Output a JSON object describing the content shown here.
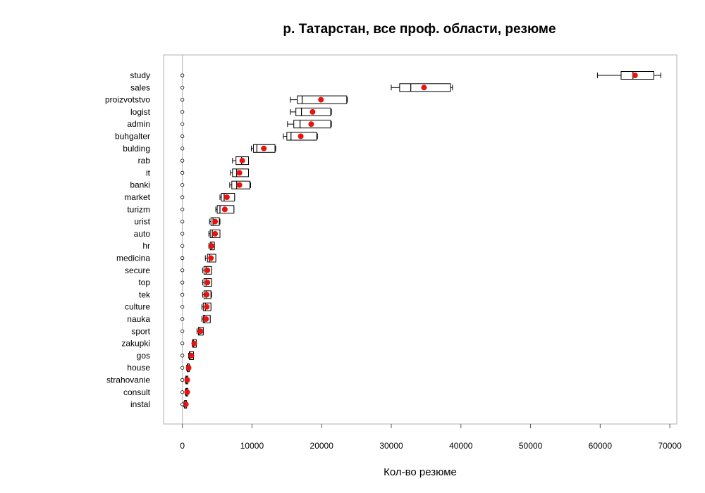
{
  "chart_data": {
    "type": "boxplot",
    "title": "р. Татарстан, все проф. области, резюме",
    "xlabel": "Кол-во резюме",
    "ylabel": "",
    "xlim": [
      -2700,
      71000
    ],
    "xticks": [
      0,
      10000,
      20000,
      30000,
      40000,
      50000,
      60000,
      70000
    ],
    "grid": false,
    "zero_line": 0,
    "colors": {
      "mean_marker": "#e8130f",
      "box": "#000000",
      "frame": "#b0b0b0",
      "zero_line": "#b0b0b0"
    },
    "categories": [
      "study",
      "sales",
      "proizvotstvo",
      "logist",
      "admin",
      "buhgalter",
      "bulding",
      "rab",
      "it",
      "banki",
      "market",
      "turizm",
      "urist",
      "auto",
      "hr",
      "medicina",
      "secure",
      "top",
      "tek",
      "culture",
      "nauka",
      "sport",
      "zakupki",
      "gos",
      "house",
      "strahovanie",
      "consult",
      "instal"
    ],
    "boxes": [
      {
        "min": 59600,
        "q1": 63000,
        "median": 64700,
        "q3": 67700,
        "max": 68700,
        "mean": 65000
      },
      {
        "min": 30000,
        "q1": 31200,
        "median": 32800,
        "q3": 38500,
        "max": 38800,
        "mean": 34700
      },
      {
        "min": 15500,
        "q1": 16500,
        "median": 17200,
        "q3": 23600,
        "max": 23700,
        "mean": 19900
      },
      {
        "min": 15500,
        "q1": 16300,
        "median": 17100,
        "q3": 21300,
        "max": 21400,
        "mean": 18700
      },
      {
        "min": 15100,
        "q1": 16000,
        "median": 16900,
        "q3": 21300,
        "max": 21400,
        "mean": 18500
      },
      {
        "min": 14500,
        "q1": 15000,
        "median": 15600,
        "q3": 19300,
        "max": 19400,
        "mean": 17000
      },
      {
        "min": 9900,
        "q1": 10200,
        "median": 10700,
        "q3": 13300,
        "max": 13400,
        "mean": 11700
      },
      {
        "min": 7200,
        "q1": 7700,
        "median": 8500,
        "q3": 9500,
        "max": 9500,
        "mean": 8600
      },
      {
        "min": 6900,
        "q1": 7200,
        "median": 7800,
        "q3": 9500,
        "max": 9500,
        "mean": 8200
      },
      {
        "min": 6800,
        "q1": 7100,
        "median": 7800,
        "q3": 9700,
        "max": 9800,
        "mean": 8200
      },
      {
        "min": 5400,
        "q1": 5600,
        "median": 6000,
        "q3": 7500,
        "max": 7500,
        "mean": 6400
      },
      {
        "min": 4800,
        "q1": 5000,
        "median": 5400,
        "q3": 7400,
        "max": 7400,
        "mean": 6100
      },
      {
        "min": 3900,
        "q1": 4100,
        "median": 4400,
        "q3": 5300,
        "max": 5400,
        "mean": 4700
      },
      {
        "min": 3800,
        "q1": 4000,
        "median": 4300,
        "q3": 5400,
        "max": 5400,
        "mean": 4700
      },
      {
        "min": 3800,
        "q1": 4000,
        "median": 4200,
        "q3": 4600,
        "max": 4600,
        "mean": 4200
      },
      {
        "min": 3300,
        "q1": 3600,
        "median": 3900,
        "q3": 4800,
        "max": 4800,
        "mean": 4100
      },
      {
        "min": 2900,
        "q1": 3100,
        "median": 3400,
        "q3": 4200,
        "max": 4200,
        "mean": 3600
      },
      {
        "min": 2900,
        "q1": 3100,
        "median": 3400,
        "q3": 4200,
        "max": 4200,
        "mean": 3600
      },
      {
        "min": 2900,
        "q1": 3100,
        "median": 3400,
        "q3": 4100,
        "max": 4200,
        "mean": 3500
      },
      {
        "min": 2800,
        "q1": 3000,
        "median": 3300,
        "q3": 4100,
        "max": 4100,
        "mean": 3500
      },
      {
        "min": 2800,
        "q1": 3000,
        "median": 3200,
        "q3": 4000,
        "max": 4000,
        "mean": 3400
      },
      {
        "min": 2100,
        "q1": 2300,
        "median": 2500,
        "q3": 3000,
        "max": 3000,
        "mean": 2600
      },
      {
        "min": 1400,
        "q1": 1500,
        "median": 1600,
        "q3": 2000,
        "max": 2000,
        "mean": 1700
      },
      {
        "min": 900,
        "q1": 1000,
        "median": 1100,
        "q3": 1600,
        "max": 1600,
        "mean": 1300
      },
      {
        "min": 600,
        "q1": 700,
        "median": 800,
        "q3": 1000,
        "max": 1100,
        "mean": 900
      },
      {
        "min": 400,
        "q1": 500,
        "median": 600,
        "q3": 800,
        "max": 800,
        "mean": 700
      },
      {
        "min": 400,
        "q1": 500,
        "median": 600,
        "q3": 800,
        "max": 800,
        "mean": 700
      },
      {
        "min": 200,
        "q1": 300,
        "median": 400,
        "q3": 600,
        "max": 600,
        "mean": 500
      }
    ],
    "outliers_x": 0
  }
}
